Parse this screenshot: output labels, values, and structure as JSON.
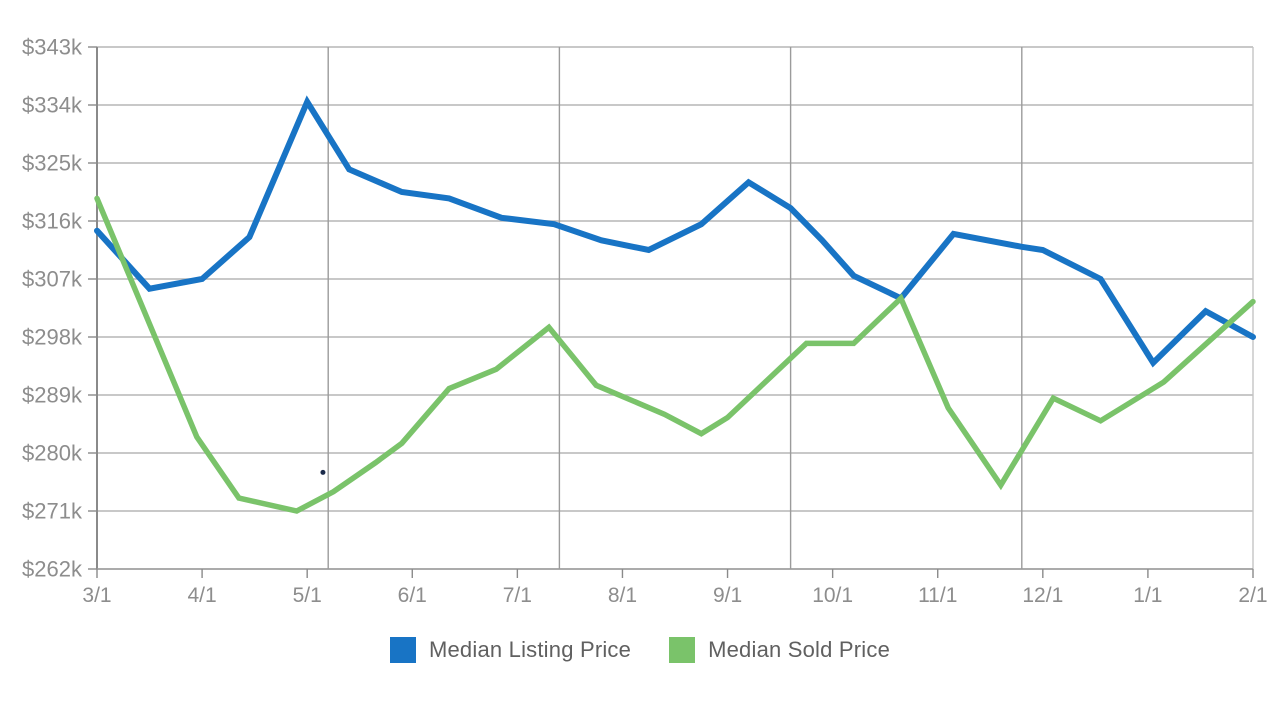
{
  "chart_data": {
    "type": "line",
    "title": "",
    "xlabel": "",
    "ylabel": "",
    "x_ticks": [
      "3/1",
      "4/1",
      "5/1",
      "6/1",
      "7/1",
      "8/1",
      "9/1",
      "10/1",
      "11/1",
      "12/1",
      "1/1",
      "2/1"
    ],
    "y_ticks": [
      "$343k",
      "$334k",
      "$325k",
      "$316k",
      "$307k",
      "$298k",
      "$289k",
      "$280k",
      "$271k",
      "$262k"
    ],
    "y_range_k": [
      262,
      343
    ],
    "y_step_k": 9,
    "grid": {
      "horizontal": true,
      "vertical_fractions": [
        0.2,
        0.4,
        0.6,
        0.8
      ],
      "horizontal_color": "#b5b5b5",
      "vertical_color": "#9b9b9b",
      "axis_color": "#8a8a8a",
      "right_border_color": "#c4c4c4"
    },
    "label_color": "#8d8d8d",
    "legend_position": "bottom-center",
    "series": [
      {
        "name": "Median Listing Price",
        "color": "#1874c5",
        "stroke_width": 6,
        "points_month_value": [
          [
            0,
            314.5
          ],
          [
            0.5,
            305.5
          ],
          [
            1,
            307
          ],
          [
            1.45,
            313.5
          ],
          [
            2,
            334.5
          ],
          [
            2.4,
            324
          ],
          [
            2.9,
            320.5
          ],
          [
            3.35,
            319.5
          ],
          [
            3.85,
            316.5
          ],
          [
            4.35,
            315.5
          ],
          [
            4.8,
            313
          ],
          [
            5.25,
            311.5
          ],
          [
            5.75,
            315.5
          ],
          [
            6.2,
            322
          ],
          [
            6.6,
            318
          ],
          [
            6.9,
            313
          ],
          [
            7.2,
            307.5
          ],
          [
            7.65,
            304
          ],
          [
            8.15,
            314
          ],
          [
            8.8,
            312
          ],
          [
            9,
            311.5
          ],
          [
            9.55,
            307
          ],
          [
            10.05,
            294
          ],
          [
            10.55,
            302
          ],
          [
            11,
            298
          ]
        ]
      },
      {
        "name": "Median Sold Price",
        "color": "#7ac36a",
        "stroke_width": 5.5,
        "points_month_value": [
          [
            0,
            319.5
          ],
          [
            0.95,
            282.5
          ],
          [
            1.35,
            273
          ],
          [
            1.9,
            271
          ],
          [
            2.25,
            274
          ],
          [
            2.65,
            278.5
          ],
          [
            2.9,
            281.5
          ],
          [
            3.35,
            290
          ],
          [
            3.8,
            293
          ],
          [
            4.3,
            299.5
          ],
          [
            4.75,
            290.5
          ],
          [
            5.4,
            286
          ],
          [
            5.75,
            283
          ],
          [
            6,
            285.5
          ],
          [
            6.75,
            297
          ],
          [
            7.2,
            297
          ],
          [
            7.65,
            304
          ],
          [
            8.1,
            287
          ],
          [
            8.6,
            275
          ],
          [
            9.1,
            288.5
          ],
          [
            9.55,
            285
          ],
          [
            10.15,
            291
          ],
          [
            11,
            303.5
          ]
        ]
      }
    ],
    "stray_dot": {
      "month": 2.15,
      "value_k": 277,
      "color": "#1b2a4a"
    }
  },
  "legend": {
    "item1": "Median Listing Price",
    "item2": "Median Sold Price"
  }
}
